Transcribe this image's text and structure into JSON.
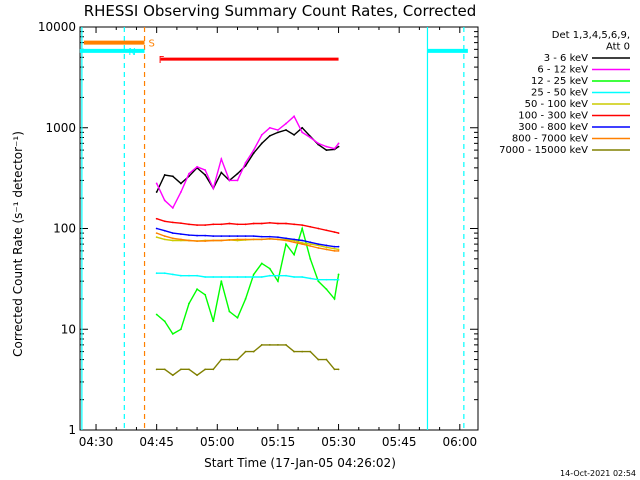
{
  "chart_data": {
    "type": "line",
    "title": "RHESSI Observing Summary Count Rates, Corrected",
    "xlabel": "Start Time (17-Jan-05 04:26:02)",
    "ylabel": "Corrected Count Rate (s⁻¹ detector⁻¹)",
    "timestamp": "14-Oct-2021 02:54",
    "y_scale": "log",
    "ylim": [
      1,
      10000
    ],
    "xlim": [
      "04:26:02",
      "06:04:30"
    ],
    "x_ticks": [
      "04:30",
      "04:45",
      "05:00",
      "05:15",
      "05:30",
      "05:45",
      "06:00"
    ],
    "x_ticks_minutes": [
      30,
      45,
      60,
      75,
      90,
      105,
      120
    ],
    "y_ticks": [
      "1",
      "10",
      "100",
      "1000",
      "10000"
    ],
    "y_ticks_values": [
      1,
      10,
      100,
      1000,
      10000
    ],
    "legend": {
      "header_lines": [
        "Det 1,3,4,5,6,9,",
        "Att 0"
      ],
      "entries": [
        "3 - 6 keV",
        "6 - 12 keV",
        "12 - 25 keV",
        "25 - 50 keV",
        "50 - 100 keV",
        "100 - 300 keV",
        "300 - 800 keV",
        "800 - 7000 keV",
        "7000 - 15000 keV"
      ],
      "placement": "right"
    },
    "annotations": {
      "saa_label": "S",
      "night_label": "N",
      "flare_label": "F"
    },
    "x": [
      45,
      47,
      49,
      51,
      53,
      55,
      57,
      59,
      61,
      63,
      65,
      67,
      69,
      71,
      73,
      75,
      77,
      79,
      81,
      83,
      85,
      87,
      89,
      90
    ],
    "series": [
      {
        "name": "3 - 6 keV",
        "color": "#000000",
        "values": [
          230,
          340,
          330,
          280,
          330,
          400,
          340,
          250,
          360,
          300,
          350,
          420,
          560,
          700,
          830,
          900,
          950,
          850,
          1000,
          820,
          680,
          600,
          610,
          650
        ]
      },
      {
        "name": "6 - 12 keV",
        "color": "#ff00ff",
        "values": [
          280,
          190,
          160,
          230,
          350,
          410,
          380,
          250,
          490,
          300,
          300,
          450,
          600,
          850,
          1000,
          950,
          1100,
          1300,
          900,
          800,
          700,
          650,
          620,
          700
        ]
      },
      {
        "name": "12 - 25 keV",
        "color": "#00ff00",
        "values": [
          14,
          12,
          9,
          10,
          18,
          25,
          22,
          12,
          30,
          15,
          13,
          20,
          35,
          45,
          40,
          30,
          70,
          55,
          100,
          50,
          30,
          25,
          20,
          35
        ]
      },
      {
        "name": "25 - 50 keV",
        "color": "#00ffff",
        "values": [
          36,
          36,
          35,
          34,
          34,
          34,
          33,
          33,
          33,
          33,
          33,
          33,
          33,
          33,
          34,
          34,
          34,
          33,
          33,
          32,
          31,
          31,
          31,
          31
        ]
      },
      {
        "name": "50 - 100 keV",
        "color": "#cccc00",
        "values": [
          82,
          78,
          76,
          76,
          76,
          75,
          76,
          76,
          76,
          77,
          76,
          77,
          78,
          78,
          79,
          78,
          78,
          76,
          72,
          70,
          68,
          65,
          63,
          62
        ]
      },
      {
        "name": "100 - 300 keV",
        "color": "#ff0000",
        "values": [
          125,
          118,
          115,
          113,
          110,
          108,
          108,
          110,
          110,
          112,
          110,
          110,
          112,
          112,
          114,
          112,
          112,
          110,
          108,
          104,
          100,
          96,
          92,
          90
        ]
      },
      {
        "name": "300 - 800 keV",
        "color": "#0000ff",
        "values": [
          100,
          95,
          90,
          88,
          86,
          85,
          85,
          84,
          84,
          84,
          84,
          84,
          84,
          83,
          83,
          82,
          80,
          78,
          76,
          73,
          70,
          68,
          66,
          66
        ]
      },
      {
        "name": "800 - 7000 keV",
        "color": "#ff8000",
        "values": [
          90,
          84,
          80,
          78,
          76,
          75,
          75,
          76,
          76,
          77,
          78,
          78,
          78,
          78,
          79,
          78,
          76,
          73,
          70,
          67,
          64,
          62,
          60,
          60
        ]
      },
      {
        "name": "7000 - 15000 keV",
        "color": "#808000",
        "values": [
          4,
          4,
          3.5,
          4,
          4,
          3.5,
          4,
          4,
          5,
          5,
          5,
          6,
          6,
          7,
          7,
          7,
          7,
          6,
          6,
          6,
          5,
          5,
          4,
          4
        ]
      }
    ],
    "saa_band": {
      "start_minute": 27,
      "end_minute": 42,
      "level": 7000,
      "color": "#ff8000"
    },
    "night_bands": [
      {
        "start_minute": 26,
        "end_minute": 42,
        "level": 5800,
        "color": "#00ffff"
      },
      {
        "start_minute": 112,
        "end_minute": 122,
        "level": 5800,
        "color": "#00ffff"
      }
    ],
    "flare_band": {
      "start_minute": 46,
      "end_minute": 90,
      "level": 4800,
      "color": "#ff0000"
    },
    "marker_lines": [
      {
        "minute": 37,
        "color": "#00ffff",
        "style": "dashed"
      },
      {
        "minute": 42,
        "color": "#ff8000",
        "style": "dashed"
      },
      {
        "minute": 121,
        "color": "#00ffff",
        "style": "dashed"
      },
      {
        "minute": 26.5,
        "color": "#00ffff",
        "style": "solid"
      },
      {
        "minute": 112,
        "color": "#00ffff",
        "style": "solid"
      }
    ],
    "grid": false
  }
}
